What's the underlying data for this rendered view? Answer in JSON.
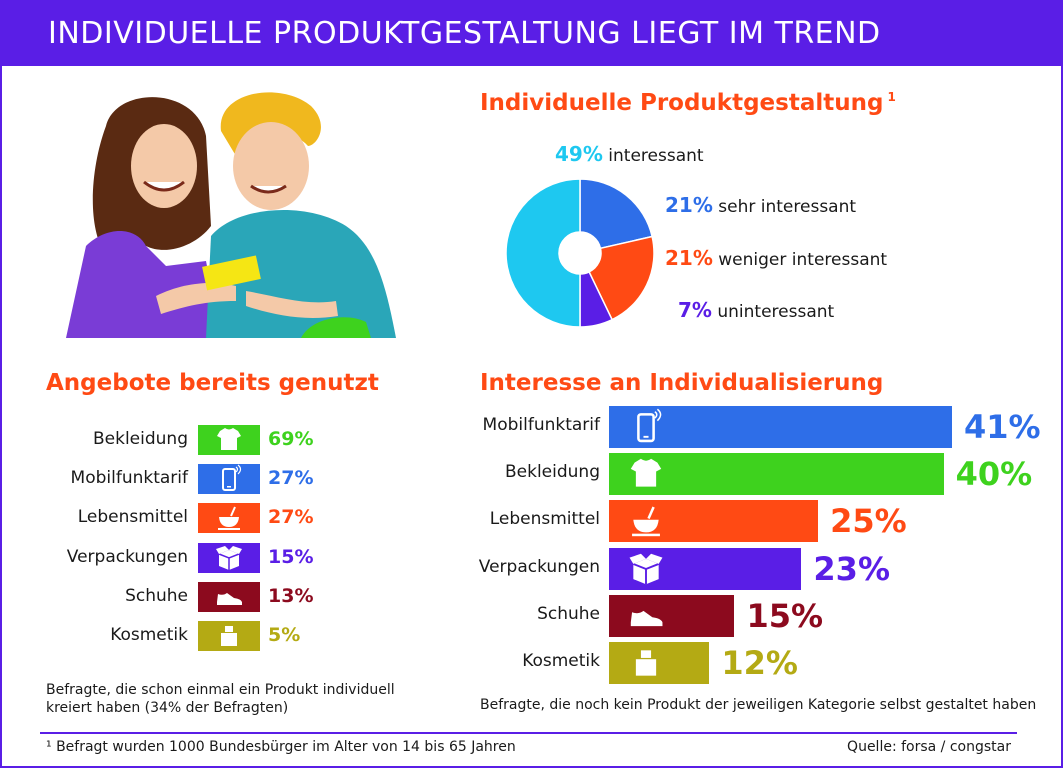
{
  "header": {
    "title": "INDIVIDUELLE PRODUKTGESTALTUNG LIEGT IM TREND"
  },
  "pie_section": {
    "title": "Individuelle Produktgestaltung",
    "footnote_mark": "1"
  },
  "left_section": {
    "title": "Angebote bereits genutzt",
    "note": [
      "Befragte, die schon einmal ein Produkt individuell",
      "kreiert haben (34% der Befragten)"
    ]
  },
  "right_section": {
    "title": "Interesse an Individualisierung",
    "note": "Befragte, die noch kein Produkt der jeweiligen Kategorie selbst gestaltet haben"
  },
  "footer": {
    "footnote": "¹ Befragt wurden 1000 Bundesbürger im Alter von 14 bis 65 Jahren",
    "source": "Quelle: forsa / congstar"
  },
  "colors": {
    "purple": "#5a1ee6",
    "orange": "#ff4a14",
    "cyan": "#1ec8f0",
    "blue": "#2e6ee8",
    "green": "#3ed21e",
    "darkred": "#8c0a1e",
    "olive": "#b4aa14"
  },
  "chart_data": [
    {
      "type": "pie",
      "title": "Individuelle Produktgestaltung",
      "categories": [
        "interessant",
        "sehr interessant",
        "weniger interessant",
        "uninteressant"
      ],
      "values": [
        49,
        21,
        21,
        7
      ],
      "value_labels": [
        "49%",
        "21%",
        "21%",
        "7%"
      ],
      "colors": [
        "#1ec8f0",
        "#2e6ee8",
        "#ff4a14",
        "#5a1ee6"
      ]
    },
    {
      "type": "table",
      "title": "Angebote bereits genutzt",
      "categories": [
        "Bekleidung",
        "Mobilfunktarif",
        "Lebensmittel",
        "Verpackungen",
        "Schuhe",
        "Kosmetik"
      ],
      "values": [
        69,
        27,
        27,
        15,
        13,
        5
      ],
      "value_labels": [
        "69%",
        "27%",
        "27%",
        "15%",
        "13%",
        "5%"
      ],
      "icons": [
        "tshirt-icon",
        "phone-icon",
        "bowl-icon",
        "box-icon",
        "shoe-icon",
        "cosmetic-icon"
      ],
      "colors": [
        "#3ed21e",
        "#2e6ee8",
        "#ff4a14",
        "#5a1ee6",
        "#8c0a1e",
        "#b4aa14"
      ]
    },
    {
      "type": "bar",
      "title": "Interesse an Individualisierung",
      "categories": [
        "Mobilfunktarif",
        "Bekleidung",
        "Lebensmittel",
        "Verpackungen",
        "Schuhe",
        "Kosmetik"
      ],
      "values": [
        41,
        40,
        25,
        23,
        15,
        12
      ],
      "value_labels": [
        "41%",
        "40%",
        "25%",
        "23%",
        "15%",
        "12%"
      ],
      "icons": [
        "phone-icon",
        "tshirt-icon",
        "bowl-icon",
        "box-icon",
        "shoe-icon",
        "cosmetic-icon"
      ],
      "colors": [
        "#2e6ee8",
        "#3ed21e",
        "#ff4a14",
        "#5a1ee6",
        "#8c0a1e",
        "#b4aa14"
      ],
      "orientation": "horizontal"
    }
  ]
}
